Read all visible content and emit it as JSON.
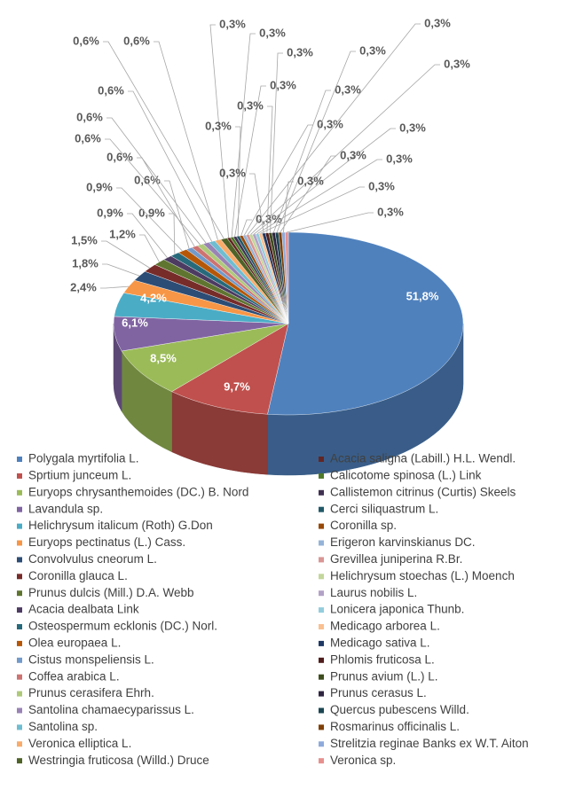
{
  "chart_data": {
    "type": "pie",
    "categories": [
      "Polygala myrtifolia L.",
      "Sprtium junceum L.",
      "Euryops chrysanthemoides (DC.) B. Nord",
      "Lavandula sp.",
      "Helichrysum italicum (Roth) G.Don",
      "Euryops pectinatus (L.) Cass.",
      "Convolvulus cneorum L.",
      "Coronilla glauca L.",
      "Prunus dulcis (Mill.) D.A. Webb",
      "Acacia dealbata Link",
      "Osteospermum ecklonis (DC.) Norl.",
      "Olea europaea L.",
      "Cistus monspeliensis L.",
      "Coffea arabica L.",
      "Prunus cerasifera Ehrh.",
      "Santolina chamaecyparissus L.",
      "Santolina sp.",
      "Veronica elliptica L.",
      "Westringia fruticosa (Willd.) Druce",
      "Acacia saligna (Labill.) H.L. Wendl.",
      "Calicotome spinosa (L.) Link",
      "Callistemon citrinus (Curtis) Skeels",
      "Cerci siliquastrum L.",
      "Coronilla sp.",
      "Erigeron karvinskianus DC.",
      "Grevillea juniperina R.Br.",
      "Helichrysum stoechas (L.) Moench",
      "Laurus nobilis L.",
      "Lonicera japonica Thunb.",
      "Medicago arborea L.",
      "Medicago sativa L.",
      "Phlomis fruticosa L.",
      "Prunus avium (L.) L.",
      "Prunus cerasus L.",
      "Quercus pubescens Willd.",
      "Rosmarinus officinalis L.",
      "Strelitzia reginae Banks ex W.T. Aiton",
      "Veronica sp."
    ],
    "values": [
      51.8,
      9.7,
      8.5,
      6.1,
      4.2,
      2.4,
      1.8,
      1.5,
      1.2,
      0.9,
      0.9,
      0.9,
      0.6,
      0.6,
      0.6,
      0.6,
      0.6,
      0.6,
      0.6,
      0.3,
      0.3,
      0.3,
      0.3,
      0.3,
      0.3,
      0.3,
      0.3,
      0.3,
      0.3,
      0.3,
      0.3,
      0.3,
      0.3,
      0.3,
      0.3,
      0.3,
      0.3,
      0.3
    ],
    "value_labels": [
      "51,8%",
      "9,7%",
      "8,5%",
      "6,1%",
      "4,2%",
      "2,4%",
      "1,8%",
      "1,5%",
      "1,2%",
      "0,9%",
      "0,9%",
      "0,9%",
      "0,6%",
      "0,6%",
      "0,6%",
      "0,6%",
      "0,6%",
      "0,6%",
      "0,6%",
      "0,3%",
      "0,3%",
      "0,3%",
      "0,3%",
      "0,3%",
      "0,3%",
      "0,3%",
      "0,3%",
      "0,3%",
      "0,3%",
      "0,3%",
      "0,3%",
      "0,3%",
      "0,3%",
      "0,3%",
      "0,3%",
      "0,3%",
      "0,3%",
      "0,3%"
    ],
    "colors": [
      "#4f81bd",
      "#c0504d",
      "#9bbb59",
      "#8064a2",
      "#4bacc6",
      "#f79646",
      "#2c4d75",
      "#772c2a",
      "#5f7530",
      "#4d3b62",
      "#276a7c",
      "#b65708",
      "#729aca",
      "#cd7371",
      "#afc97a",
      "#9983b5",
      "#6fbdd1",
      "#f9ab6b",
      "#4f6228",
      "#632523",
      "#4f7a28",
      "#3f3151",
      "#215968",
      "#984807",
      "#95b3d7",
      "#d99694",
      "#c3d69b",
      "#b3a2c7",
      "#93cddd",
      "#fac090",
      "#1f3864",
      "#4f1d1c",
      "#3d4d1e",
      "#2e2540",
      "#1b4652",
      "#7f3f06",
      "#8eaadb",
      "#e6908e"
    ]
  }
}
